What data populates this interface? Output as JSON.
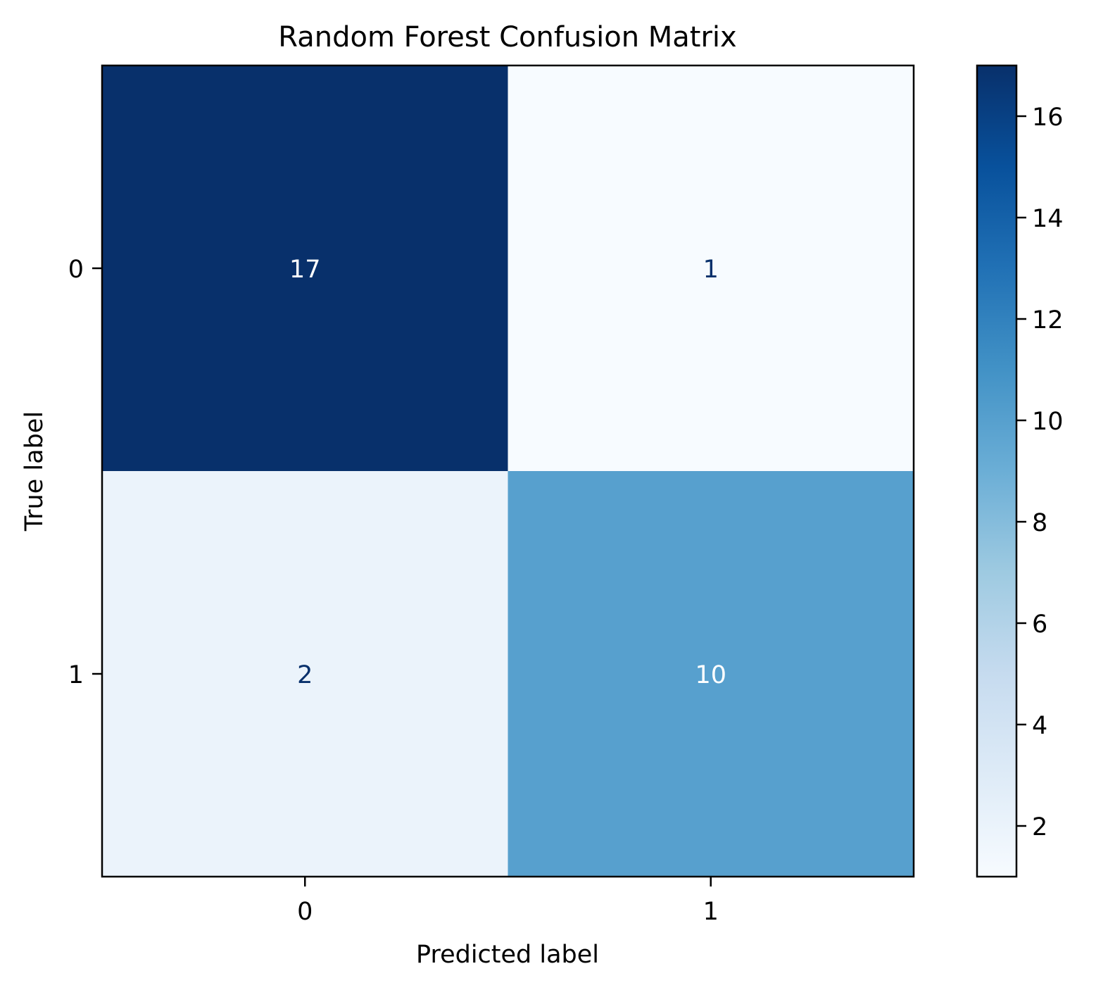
{
  "chart_data": {
    "type": "heatmap",
    "title": "Random Forest Confusion Matrix",
    "xlabel": "Predicted label",
    "ylabel": "True label",
    "x_categories": [
      "0",
      "1"
    ],
    "y_categories": [
      "0",
      "1"
    ],
    "matrix": [
      [
        17,
        1
      ],
      [
        2,
        10
      ]
    ],
    "colormap": "Blues",
    "colorbar": {
      "range": [
        1,
        17
      ],
      "ticks": [
        2,
        4,
        6,
        8,
        10,
        12,
        14,
        16
      ]
    },
    "colors": {
      "low": "#f7fbff",
      "high": "#08306b",
      "label_dark": "#08306b",
      "label_light": "#ffffff"
    },
    "grid": false
  }
}
